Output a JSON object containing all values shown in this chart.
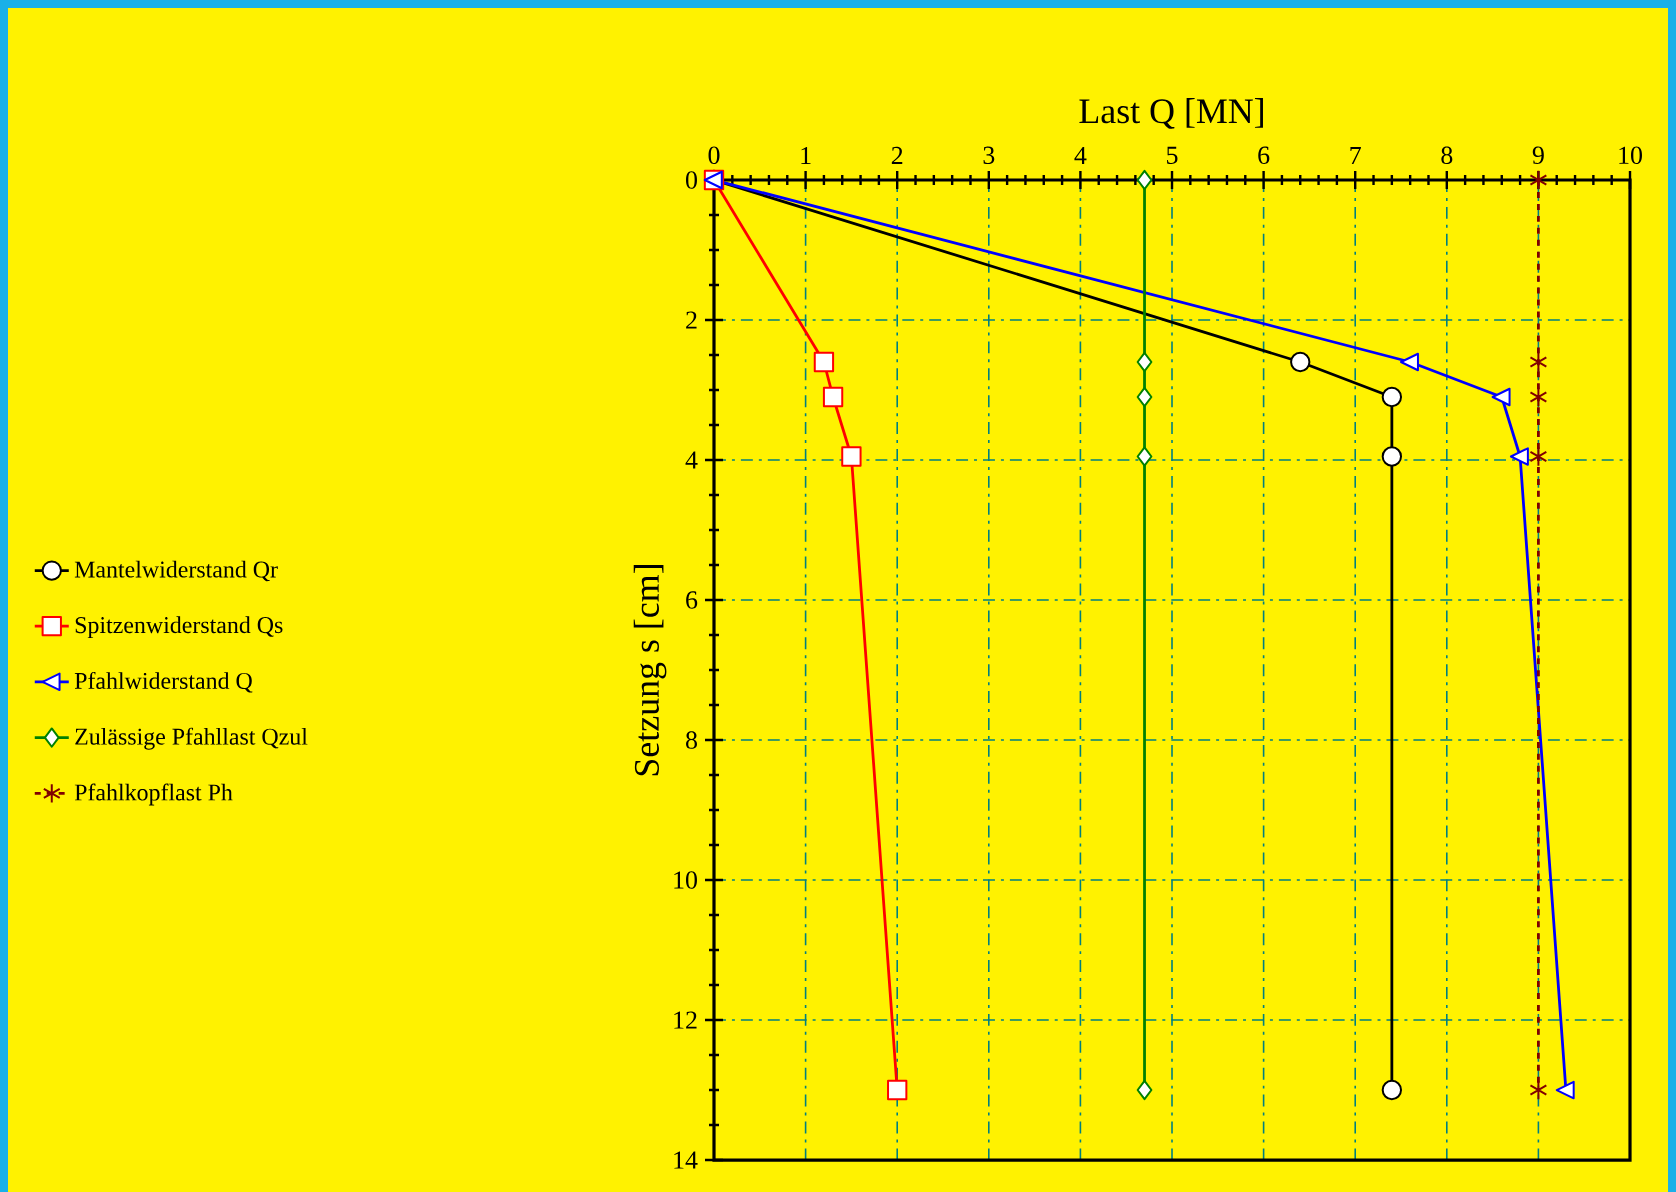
{
  "chart_data": {
    "type": "line",
    "xlabel": "Last Q [MN]",
    "ylabel": "Setzung s [cm]",
    "xlim": [
      0,
      10
    ],
    "ylim": [
      14,
      0
    ],
    "xticks": [
      0,
      1,
      2,
      3,
      4,
      5,
      6,
      7,
      8,
      9,
      10
    ],
    "yticks": [
      0,
      2,
      4,
      6,
      8,
      10,
      12,
      14
    ],
    "grid": true,
    "legend": "left",
    "series": [
      {
        "name": "Mantelwiderstand Qr",
        "color": "#000000",
        "marker": "circle",
        "x": [
          0,
          6.4,
          7.4,
          7.4,
          7.4
        ],
        "values": [
          0,
          2.6,
          3.1,
          3.95,
          13
        ]
      },
      {
        "name": "Spitzenwiderstand Qs",
        "color": "#ff0000",
        "marker": "square",
        "x": [
          0,
          1.2,
          1.3,
          1.5,
          2.0
        ],
        "values": [
          0,
          2.6,
          3.1,
          3.95,
          13
        ]
      },
      {
        "name": "Pfahlwiderstand Q",
        "color": "#0000ff",
        "marker": "triangle",
        "x": [
          0,
          7.6,
          8.6,
          8.8,
          9.3
        ],
        "values": [
          0,
          2.6,
          3.1,
          3.95,
          13
        ]
      },
      {
        "name": "Zulässige Pfahllast Qzul",
        "color": "#008000",
        "marker": "diamond",
        "x": [
          4.7,
          4.7,
          4.7,
          4.7,
          4.7
        ],
        "values": [
          0,
          2.6,
          3.1,
          3.95,
          13
        ]
      },
      {
        "name": "Pfahlkopflast Ph",
        "color": "#800000",
        "marker": "cross",
        "line_style": "dashed",
        "x": [
          9,
          9,
          9,
          9,
          9
        ],
        "values": [
          0,
          2.6,
          3.1,
          3.95,
          13
        ]
      }
    ]
  }
}
